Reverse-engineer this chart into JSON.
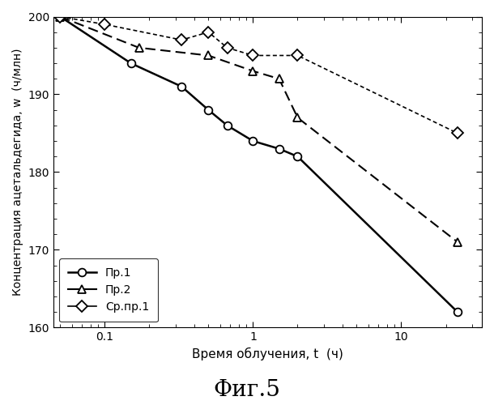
{
  "title": "Фиг.5",
  "xlabel": "Время облучения, t  (ч)",
  "ylabel": "Концентрация ацетальдегида, w  (ч/млн)",
  "ylim": [
    160,
    200
  ],
  "series": [
    {
      "label": "Пр.1",
      "x": [
        0.05,
        0.15,
        0.33,
        0.5,
        0.67,
        1.0,
        1.5,
        2.0,
        24.0
      ],
      "y": [
        200,
        194,
        191,
        188,
        186,
        184,
        183,
        182,
        162
      ],
      "linestyle": "-",
      "marker": "o",
      "markersize": 7,
      "linewidth": 1.8,
      "dashes": null
    },
    {
      "label": "Пр.2",
      "x": [
        0.05,
        0.17,
        0.5,
        1.0,
        1.5,
        2.0,
        24.0
      ],
      "y": [
        200,
        196,
        195,
        193,
        192,
        187,
        171
      ],
      "linestyle": "--",
      "marker": "^",
      "markersize": 7,
      "linewidth": 1.5,
      "dashes": [
        6,
        3
      ]
    },
    {
      "label": "Ср.пр.1",
      "x": [
        0.05,
        0.1,
        0.33,
        0.5,
        0.67,
        1.0,
        2.0,
        24.0
      ],
      "y": [
        200,
        199,
        197,
        198,
        196,
        195,
        195,
        185
      ],
      "linestyle": "--",
      "marker": "D",
      "markersize": 7,
      "linewidth": 1.2,
      "dashes": [
        3,
        2
      ]
    }
  ]
}
